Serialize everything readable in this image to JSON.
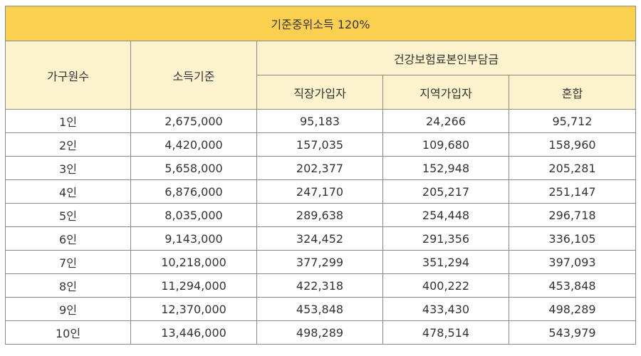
{
  "table": {
    "title": "기준중위소득 120%",
    "headers": {
      "household": "가구원수",
      "income": "소득기준",
      "premium_group": "건강보험료본인부담금",
      "employee": "직장가입자",
      "regional": "지역가입자",
      "mixed": "혼합"
    },
    "rows": [
      {
        "household": "1인",
        "income": "2,675,000",
        "employee": "95,183",
        "regional": "24,266",
        "mixed": "95,712"
      },
      {
        "household": "2인",
        "income": "4,420,000",
        "employee": "157,035",
        "regional": "109,680",
        "mixed": "158,960"
      },
      {
        "household": "3인",
        "income": "5,658,000",
        "employee": "202,377",
        "regional": "152,948",
        "mixed": "205,281"
      },
      {
        "household": "4인",
        "income": "6,876,000",
        "employee": "247,170",
        "regional": "205,217",
        "mixed": "251,147"
      },
      {
        "household": "5인",
        "income": "8,035,000",
        "employee": "289,638",
        "regional": "254,448",
        "mixed": "296,718"
      },
      {
        "household": "6인",
        "income": "9,143,000",
        "employee": "324,452",
        "regional": "291,356",
        "mixed": "336,105"
      },
      {
        "household": "7인",
        "income": "10,218,000",
        "employee": "377,299",
        "regional": "351,294",
        "mixed": "397,093"
      },
      {
        "household": "8인",
        "income": "11,294,000",
        "employee": "422,318",
        "regional": "400,222",
        "mixed": "453,848"
      },
      {
        "household": "9인",
        "income": "12,370,000",
        "employee": "453,848",
        "regional": "433,430",
        "mixed": "498,289"
      },
      {
        "household": "10인",
        "income": "13,446,000",
        "employee": "498,289",
        "regional": "478,514",
        "mixed": "543,979"
      }
    ],
    "colors": {
      "title_background": "#fbd04f",
      "header_background": "#fdf2ce",
      "border": "#8a8a8a"
    }
  }
}
